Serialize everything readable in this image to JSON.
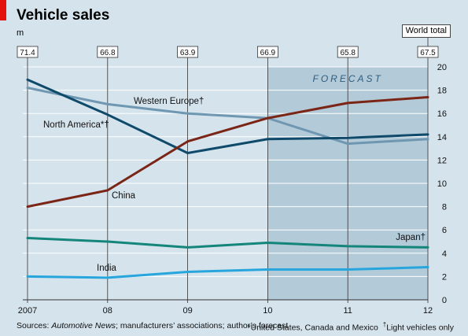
{
  "chart_data": {
    "type": "line",
    "title": "Vehicle sales",
    "unit_label": "m",
    "categories": [
      "2007",
      "08",
      "09",
      "10",
      "11",
      "12"
    ],
    "ylim": [
      0,
      20
    ],
    "yticks": [
      "0",
      "2",
      "4",
      "6",
      "8",
      "10",
      "12",
      "14",
      "16",
      "18",
      "20"
    ],
    "grid": true,
    "forecast_label": "FORECAST",
    "forecast_from": "10",
    "world_total_label": "World total",
    "world_totals": [
      "71.4",
      "66.8",
      "63.9",
      "66.9",
      "65.8",
      "67.5"
    ],
    "series": [
      {
        "name": "Western Europe†",
        "color": "#6f97b1",
        "values": [
          18.2,
          16.8,
          16.0,
          15.6,
          13.4,
          13.8
        ]
      },
      {
        "name": "North America*†",
        "color": "#0f4a6b",
        "values": [
          18.9,
          15.9,
          12.6,
          13.8,
          13.9,
          14.2
        ]
      },
      {
        "name": "China",
        "color": "#7a2516",
        "values": [
          8.0,
          9.4,
          13.6,
          15.6,
          16.9,
          17.4
        ]
      },
      {
        "name": "Japan†",
        "color": "#14857a",
        "values": [
          5.3,
          5.0,
          4.5,
          4.9,
          4.6,
          4.5
        ]
      },
      {
        "name": "India",
        "color": "#27a6dd",
        "values": [
          2.0,
          1.9,
          2.4,
          2.6,
          2.6,
          2.8
        ]
      }
    ],
    "source_prefix": "Sources: ",
    "source_italic": "Automotive News",
    "source_suffix": "; manufacturers’ associations; author’s forecast",
    "footnote_1": "*United States, Canada and Mexico",
    "footnote_2_mark": "†",
    "footnote_2": "Light vehicles only"
  }
}
